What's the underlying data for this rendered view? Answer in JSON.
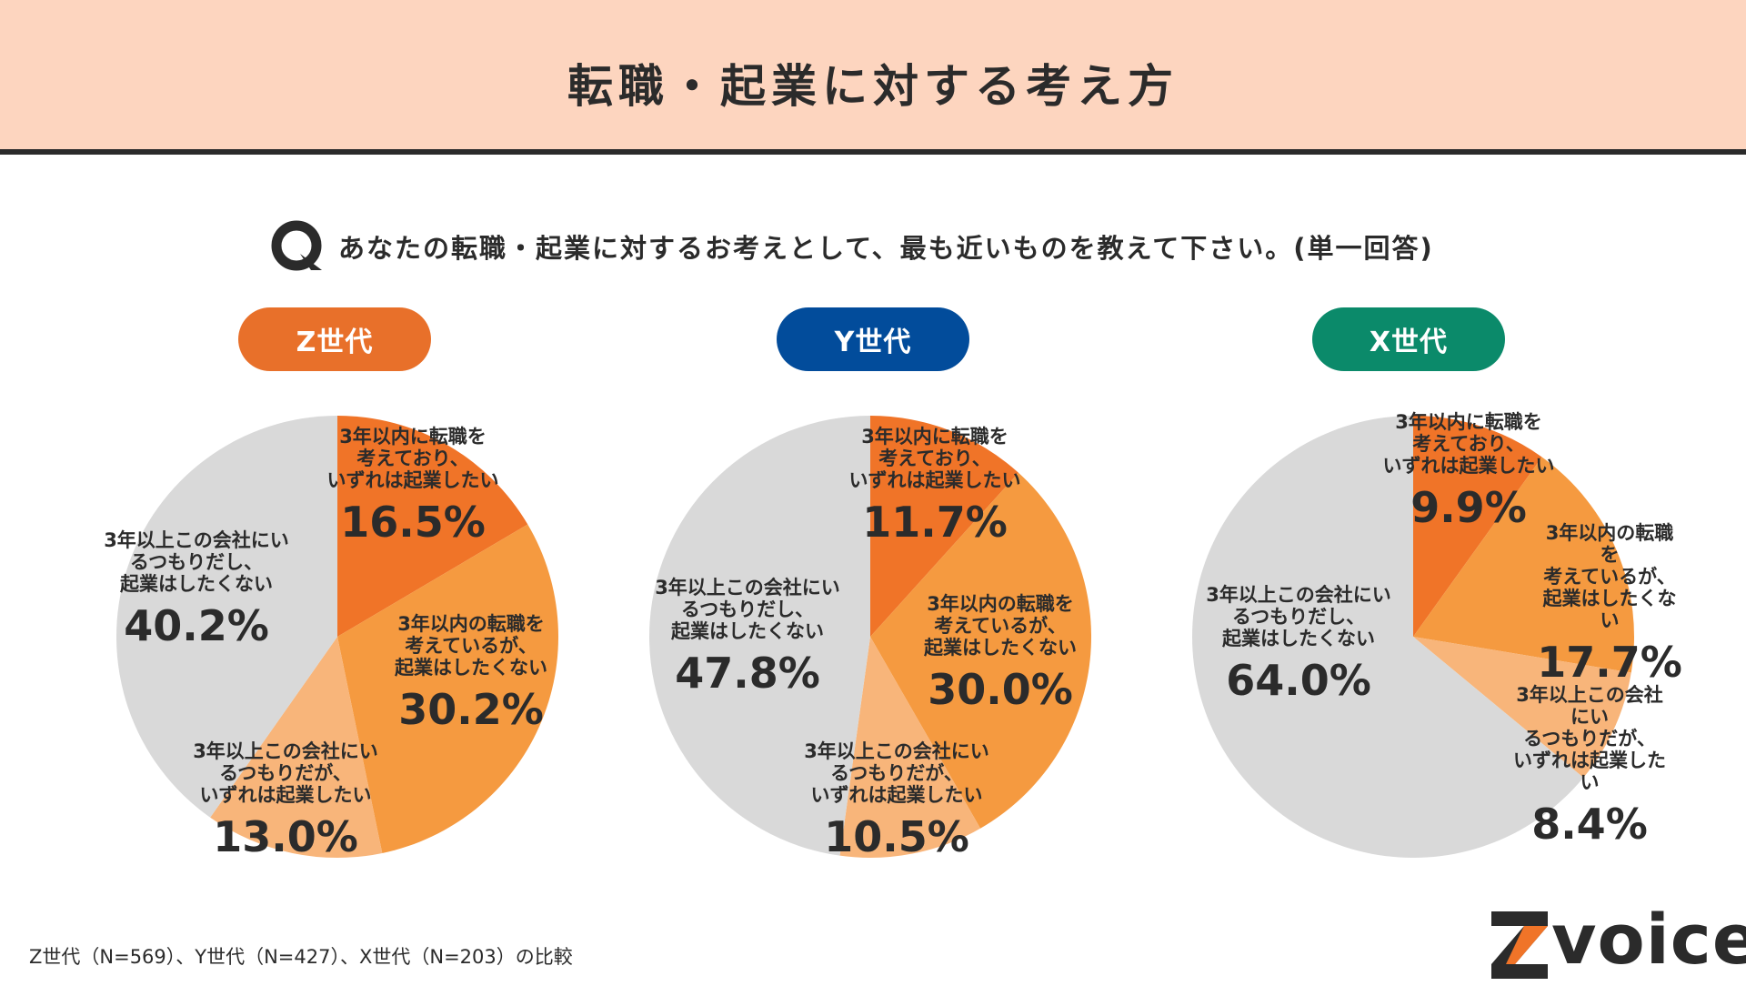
{
  "header": {
    "title": "転職・起業に対する考え方"
  },
  "question": {
    "icon": "q-icon",
    "text": "あなたの転職・起業に対するお考えとして、最も近いものを教えて下さい。(単一回答)"
  },
  "footnote": "Z世代（N=569）、Y世代（N=427）、X世代（N=203）の比較",
  "logo": {
    "word": "voice",
    "mark": "Z"
  },
  "colors": {
    "z_pill": "#e8702a",
    "y_pill": "#024c9b",
    "x_pill": "#0b8a6a",
    "slice_1": "#f07428",
    "slice_2": "#f59a40",
    "slice_3": "#f8b57a",
    "slice_4": "#d9d9d9"
  },
  "chart_data": [
    {
      "type": "pie",
      "title": "Z世代",
      "categories": [
        "3年以内に転職を考えており、いずれは起業したい",
        "3年以内の転職を考えているが、起業はしたくない",
        "3年以上この会社にいるつもりだが、いずれは起業したい",
        "3年以上この会社にいるつもりだし、起業はしたくない"
      ],
      "values": [
        16.5,
        30.2,
        13.0,
        40.2
      ],
      "labels": [
        "3年以内に転職を\n考えており、\nいずれは起業したい",
        "3年以内の転職を\n考えているが、\n起業はしたくない",
        "3年以上この会社にい\nるつもりだが、\nいずれは起業したい",
        "3年以上この会社にい\nるつもりだし、\n起業はしたくない"
      ],
      "value_labels": [
        "16.5%",
        "30.2%",
        "13.0%",
        "40.2%"
      ]
    },
    {
      "type": "pie",
      "title": "Y世代",
      "categories": [
        "3年以内に転職を考えており、いずれは起業したい",
        "3年以内の転職を考えているが、起業はしたくない",
        "3年以上この会社にいるつもりだが、いずれは起業したい",
        "3年以上この会社にいるつもりだし、起業はしたくない"
      ],
      "values": [
        11.7,
        30.0,
        10.5,
        47.8
      ],
      "labels": [
        "3年以内に転職を\n考えており、\nいずれは起業したい",
        "3年以内の転職を\n考えているが、\n起業はしたくない",
        "3年以上この会社にい\nるつもりだが、\nいずれは起業したい",
        "3年以上この会社にい\nるつもりだし、\n起業はしたくない"
      ],
      "value_labels": [
        "11.7%",
        "30.0%",
        "10.5%",
        "47.8%"
      ]
    },
    {
      "type": "pie",
      "title": "X世代",
      "categories": [
        "3年以内に転職を考えており、いずれは起業したい",
        "3年以内の転職を考えているが、起業はしたくない",
        "3年以上この会社にいるつもりだが、いずれは起業したい",
        "3年以上この会社にいるつもりだし、起業はしたくない"
      ],
      "values": [
        9.9,
        17.7,
        8.4,
        64.0
      ],
      "labels": [
        "3年以内に転職を\n考えており、\nいずれは起業したい",
        "3年以内の転職を\n考えているが、\n起業はしたくない",
        "3年以上この会社にい\nるつもりだが、\nいずれは起業したい",
        "3年以上この会社にい\nるつもりだし、\n起業はしたくない"
      ],
      "value_labels": [
        "9.9%",
        "17.7%",
        "8.4%",
        "64.0%"
      ]
    }
  ]
}
